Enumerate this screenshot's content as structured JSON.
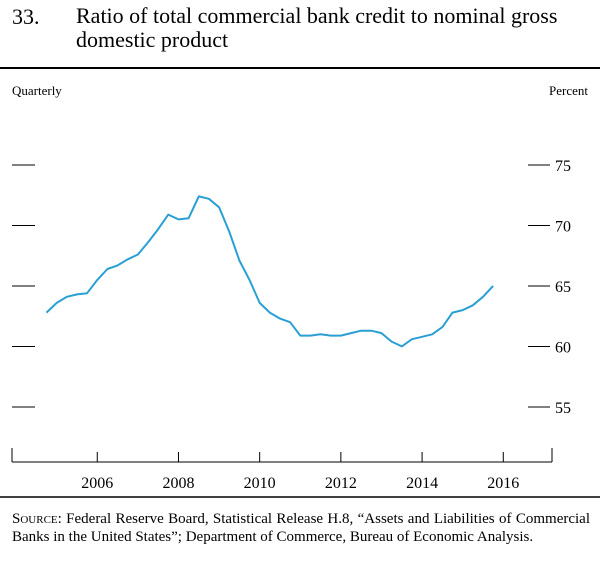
{
  "chart_data": {
    "type": "line",
    "number": "33.",
    "title": "Ratio of total commercial bank credit to nominal gross domestic product",
    "left_label": "Quarterly",
    "right_label": "Percent",
    "source_label": "Source:",
    "source": "Federal Reserve Board, Statistical Release H.8, “Assets and Liabilities of Commercial Banks in the United States”; Department of Commerce, Bureau of Economic Analysis.",
    "x": [
      2004.75,
      2005,
      2005.25,
      2005.5,
      2005.75,
      2006,
      2006.25,
      2006.5,
      2006.75,
      2007,
      2007.25,
      2007.5,
      2007.75,
      2008,
      2008.25,
      2008.5,
      2008.75,
      2009,
      2009.25,
      2009.5,
      2009.75,
      2010,
      2010.25,
      2010.5,
      2010.75,
      2011,
      2011.25,
      2011.5,
      2011.75,
      2012,
      2012.25,
      2012.5,
      2012.75,
      2013,
      2013.25,
      2013.5,
      2013.75,
      2014,
      2014.25,
      2014.5,
      2014.75,
      2015,
      2015.25,
      2015.5,
      2015.75
    ],
    "series": [
      {
        "color": "#2a9fd6",
        "values": [
          62.8,
          63.6,
          64.1,
          64.3,
          64.4,
          65.5,
          66.4,
          66.7,
          67.2,
          67.6,
          68.6,
          69.7,
          70.9,
          70.5,
          70.6,
          72.4,
          72.2,
          71.5,
          69.5,
          67.1,
          65.5,
          63.6,
          62.8,
          62.3,
          62.0,
          60.9,
          60.9,
          61.0,
          60.9,
          60.9,
          61.1,
          61.3,
          61.3,
          61.1,
          60.4,
          60.0,
          60.6,
          60.8,
          61.0,
          61.6,
          62.8,
          63.0,
          63.4,
          64.1,
          65.0
        ]
      }
    ],
    "xlim": [
      2003.9,
      2017.2
    ],
    "xticks": [
      2006,
      2008,
      2010,
      2012,
      2014,
      2016
    ],
    "ylim": [
      50.45,
      79.0
    ],
    "yticks": [
      55,
      60,
      65,
      70,
      75
    ]
  }
}
